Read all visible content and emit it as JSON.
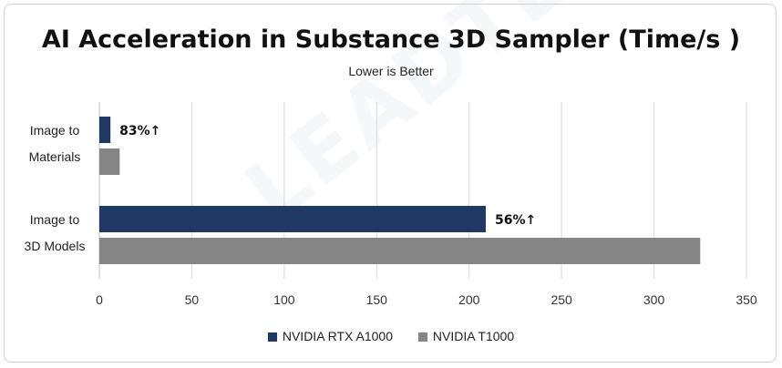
{
  "chart_data": {
    "type": "bar",
    "orientation": "horizontal",
    "title": "AI Acceleration in Substance 3D Sampler (Time/s )",
    "subtitle": "Lower is Better",
    "categories": [
      "Image to Materials",
      "Image to 3D Models"
    ],
    "category_label_lines": [
      [
        "Image to",
        "Materials"
      ],
      [
        "Image to",
        "3D Models"
      ]
    ],
    "series": [
      {
        "name": "NVIDIA RTX A1000",
        "values": [
          6,
          209
        ],
        "color": "#1f3864"
      },
      {
        "name": "NVIDIA T1000",
        "values": [
          11,
          325
        ],
        "color": "#858585"
      }
    ],
    "annotations": [
      "83%↑",
      "56%↑"
    ],
    "xlim": [
      0,
      350
    ],
    "xticks": [
      "0",
      "50",
      "100",
      "150",
      "200",
      "250",
      "300",
      "350"
    ],
    "xtick_values": [
      0,
      50,
      100,
      150,
      200,
      250,
      300,
      350
    ],
    "grid": true,
    "legend_position": "bottom"
  },
  "watermark": "LEADTEK"
}
